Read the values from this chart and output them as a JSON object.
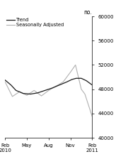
{
  "title": "no.",
  "ylim": [
    40000,
    60000
  ],
  "yticks": [
    40000,
    44000,
    48000,
    52000,
    56000,
    60000
  ],
  "xtick_positions": [
    0,
    3,
    6,
    9,
    12
  ],
  "xtick_labels": [
    "Feb\n2010",
    "May",
    "Aug",
    "Nov",
    "Feb\n2011"
  ],
  "trend_x": [
    0,
    0.8,
    1.5,
    2.5,
    3.5,
    4.5,
    5.5,
    6.5,
    7.5,
    8.5,
    9.2,
    9.8,
    10.5,
    11.2,
    12
  ],
  "trend_y": [
    49500,
    48700,
    47800,
    47300,
    47200,
    47400,
    47800,
    48200,
    48700,
    49200,
    49600,
    49800,
    49800,
    49400,
    48700
  ],
  "seas_x": [
    0,
    1,
    2,
    3,
    4,
    5,
    6,
    7,
    8,
    9,
    9.7,
    10.5,
    11,
    12
  ],
  "seas_y": [
    49200,
    46800,
    47600,
    47000,
    47800,
    46900,
    47800,
    48500,
    49200,
    50800,
    52000,
    48000,
    47200,
    43500
  ],
  "trend_color": "#1a1a1a",
  "seas_color": "#b0b0b0",
  "trend_lw": 0.9,
  "seas_lw": 0.8,
  "legend_trend": "Trend",
  "legend_seas": "Seasonally Adjusted",
  "bg_color": "#ffffff",
  "figsize": [
    1.81,
    2.31
  ],
  "dpi": 100
}
